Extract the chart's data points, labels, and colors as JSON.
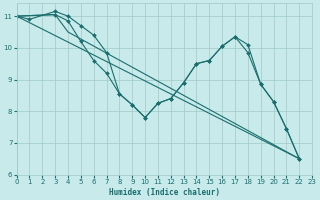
{
  "xlabel": "Humidex (Indice chaleur)",
  "bg_color": "#c8eaea",
  "grid_color": "#a0c8c8",
  "line_color": "#1a6e6e",
  "xlim": [
    0,
    23
  ],
  "ylim": [
    6,
    11.4
  ],
  "yticks": [
    6,
    7,
    8,
    9,
    10,
    11
  ],
  "line1": [
    [
      0,
      11.0
    ],
    [
      1,
      10.9
    ],
    [
      3,
      11.15
    ],
    [
      4,
      11.0
    ],
    [
      5,
      10.7
    ],
    [
      6,
      10.4
    ],
    [
      7,
      9.85
    ],
    [
      8,
      8.55
    ],
    [
      9,
      8.2
    ],
    [
      10,
      7.8
    ],
    [
      11,
      8.25
    ],
    [
      12,
      8.4
    ],
    [
      13,
      8.9
    ],
    [
      14,
      9.5
    ],
    [
      15,
      9.6
    ],
    [
      16,
      10.05
    ],
    [
      17,
      10.35
    ],
    [
      18,
      10.1
    ],
    [
      19,
      8.85
    ],
    [
      20,
      8.3
    ],
    [
      21,
      7.45
    ],
    [
      22,
      6.5
    ]
  ],
  "line2": [
    [
      0,
      11.0
    ],
    [
      3,
      11.05
    ],
    [
      4,
      10.85
    ],
    [
      5,
      10.2
    ],
    [
      6,
      9.6
    ],
    [
      7,
      9.2
    ],
    [
      8,
      8.55
    ],
    [
      9,
      8.2
    ],
    [
      10,
      7.8
    ],
    [
      11,
      8.25
    ],
    [
      12,
      8.4
    ],
    [
      13,
      8.9
    ],
    [
      14,
      9.5
    ],
    [
      15,
      9.6
    ],
    [
      16,
      10.05
    ],
    [
      17,
      10.35
    ],
    [
      18,
      9.85
    ],
    [
      19,
      8.85
    ],
    [
      20,
      8.3
    ],
    [
      21,
      7.45
    ],
    [
      22,
      6.5
    ]
  ],
  "line3": [
    [
      0,
      11.0
    ],
    [
      3,
      11.05
    ],
    [
      4,
      10.5
    ],
    [
      22,
      6.5
    ]
  ],
  "line4": [
    [
      0,
      11.0
    ],
    [
      22,
      6.5
    ]
  ]
}
